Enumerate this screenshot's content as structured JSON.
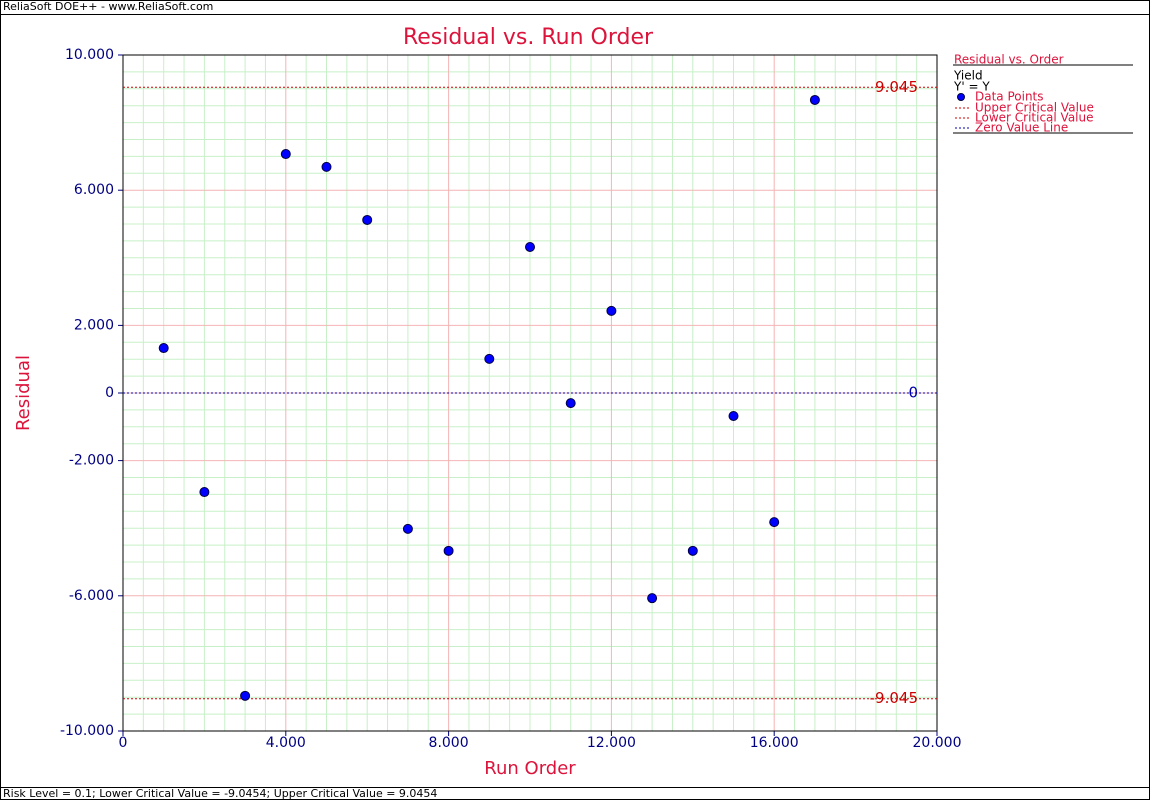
{
  "header": "ReliaSoft DOE++ - www.ReliaSoft.com",
  "footer": "Risk Level = 0.1; Lower Critical Value = -9.0454; Upper Critical Value = 9.0454",
  "chart_data": {
    "type": "scatter",
    "title": "Residual vs. Run Order",
    "x_label": "Run Order",
    "y_label": "Residual",
    "xlim": [
      0,
      20
    ],
    "ylim": [
      -10,
      10
    ],
    "xticks": [
      0,
      {
        "value": 4,
        "label": "4.000"
      },
      {
        "value": 8,
        "label": "8.000"
      },
      {
        "value": 12,
        "label": "12.000"
      },
      {
        "value": 16,
        "label": "16.000"
      },
      {
        "value": 20,
        "label": "20.000"
      }
    ],
    "yticks": [
      {
        "value": -10,
        "label": "-10.000"
      },
      {
        "value": -6,
        "label": "-6.000"
      },
      {
        "value": -2,
        "label": "-2.000"
      },
      0,
      {
        "value": 2,
        "label": "2.000"
      },
      {
        "value": 6,
        "label": "6.000"
      },
      {
        "value": 10,
        "label": "10.000"
      }
    ],
    "grid": true,
    "legend": {
      "title": "Residual vs. Order",
      "group": "Yield",
      "subgroup": "Y' = Y"
    },
    "series": [
      {
        "name": "Data Points",
        "color": "#0000ff",
        "x": [
          1,
          2,
          3,
          4,
          5,
          6,
          7,
          8,
          9,
          10,
          11,
          12,
          13,
          14,
          15,
          16,
          17
        ],
        "values": [
          1.33,
          -2.93,
          -8.96,
          7.07,
          6.69,
          5.12,
          -4.02,
          -4.67,
          1.01,
          4.32,
          -0.3,
          2.43,
          -6.07,
          -4.67,
          -0.68,
          -3.82,
          8.67
        ]
      }
    ],
    "reference_lines": [
      {
        "name": "Upper Critical Value",
        "value": {
          "value": 9.0454,
          "label": "9.045"
        },
        "color": "#cc0000"
      },
      {
        "name": "Lower Critical Value",
        "value": {
          "value": -9.0454,
          "label": "-9.045"
        },
        "color": "#cc0000"
      },
      {
        "name": "Zero Value Line",
        "value": 0,
        "color": "#0000aa"
      }
    ]
  }
}
